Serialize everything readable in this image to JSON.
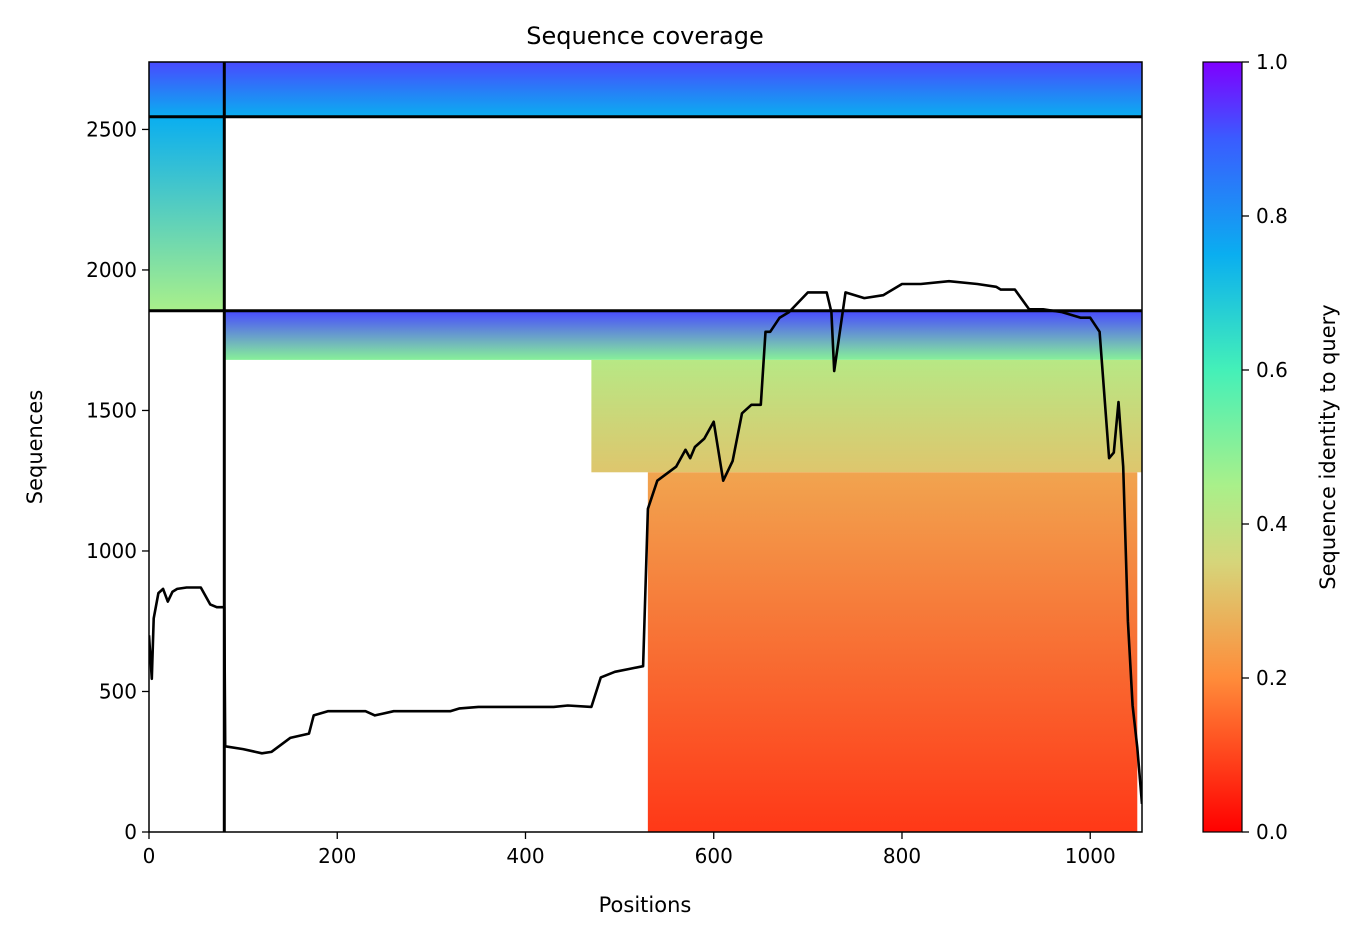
{
  "chart_data": {
    "type": "heatmap",
    "title": "Sequence coverage",
    "xlabel": "Positions",
    "ylabel": "Sequences",
    "xlim": [
      0,
      1055
    ],
    "ylim": [
      0,
      2740
    ],
    "xticks": [
      0,
      200,
      400,
      600,
      800,
      1000
    ],
    "yticks": [
      0,
      500,
      1000,
      1500,
      2000,
      2500
    ],
    "colorbar": {
      "label": "Sequence identity to query",
      "range": [
        0.0,
        1.0
      ],
      "ticks": [
        "0.0",
        "0.2",
        "0.4",
        "0.6",
        "0.8",
        "1.0"
      ],
      "colormap": "rainbow_r"
    },
    "segment_boundaries": {
      "x": [
        80
      ],
      "y": [
        1855,
        2545
      ]
    },
    "blocks": [
      {
        "x": [
          0,
          80
        ],
        "y": [
          1855,
          2545
        ],
        "identity_bottom": 0.45,
        "identity_top": 0.75
      },
      {
        "x": [
          0,
          1055
        ],
        "y": [
          2545,
          2740
        ],
        "identity_bottom": 0.75,
        "identity_top": 0.92
      },
      {
        "x": [
          80,
          1055
        ],
        "y": [
          1680,
          1855
        ],
        "identity_bottom": 0.5,
        "identity_top": 0.92
      },
      {
        "x": [
          470,
          1055
        ],
        "y": [
          1280,
          1680
        ],
        "identity_bottom": 0.32,
        "identity_top": 0.42
      },
      {
        "x": [
          530,
          1050
        ],
        "y": [
          0,
          1280
        ],
        "identity_bottom": 0.08,
        "identity_top": 0.25
      }
    ],
    "coverage_line": {
      "x": [
        0,
        3,
        5,
        10,
        15,
        20,
        25,
        30,
        40,
        55,
        65,
        72,
        80,
        81,
        100,
        120,
        130,
        150,
        170,
        175,
        190,
        230,
        240,
        260,
        300,
        320,
        330,
        350,
        400,
        430,
        445,
        470,
        480,
        495,
        510,
        525,
        530,
        540,
        560,
        570,
        575,
        580,
        590,
        600,
        610,
        620,
        630,
        640,
        650,
        655,
        660,
        670,
        680,
        700,
        720,
        725,
        728,
        740,
        760,
        780,
        800,
        808,
        820,
        850,
        880,
        900,
        905,
        920,
        935,
        950,
        970,
        990,
        1000,
        1010,
        1020,
        1025,
        1030,
        1035,
        1040,
        1045,
        1050,
        1055
      ],
      "y": [
        700,
        545,
        760,
        850,
        865,
        820,
        855,
        865,
        870,
        870,
        810,
        800,
        800,
        305,
        295,
        280,
        285,
        335,
        350,
        415,
        430,
        430,
        415,
        430,
        430,
        430,
        440,
        445,
        445,
        445,
        450,
        445,
        550,
        570,
        580,
        590,
        1150,
        1250,
        1300,
        1360,
        1330,
        1370,
        1400,
        1460,
        1250,
        1320,
        1490,
        1520,
        1520,
        1780,
        1780,
        1830,
        1850,
        1920,
        1920,
        1850,
        1640,
        1920,
        1900,
        1910,
        1950,
        1950,
        1950,
        1960,
        1950,
        1940,
        1930,
        1930,
        1860,
        1860,
        1850,
        1830,
        1830,
        1780,
        1330,
        1350,
        1530,
        1300,
        750,
        450,
        300,
        100
      ]
    }
  }
}
